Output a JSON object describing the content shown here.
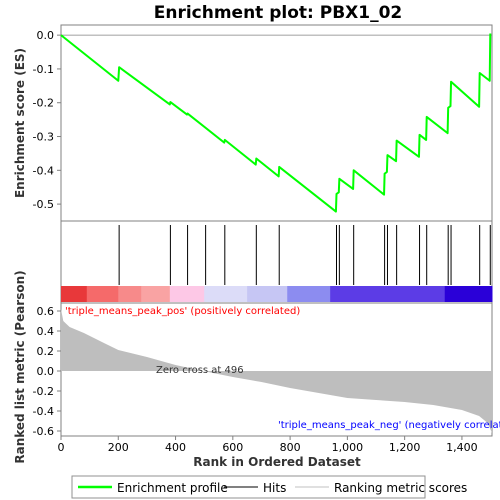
{
  "chart_data": {
    "type": "line",
    "title": "Enrichment plot: PBX1_02",
    "panels": [
      {
        "name": "enrichment-score",
        "ylabel": "Enrichment score (ES)",
        "ylim": [
          -0.55,
          0.03
        ],
        "yticks": [
          0.0,
          -0.1,
          -0.2,
          -0.3,
          -0.4,
          -0.5
        ],
        "ytick_labels": [
          "0.0",
          "-0.1",
          "-0.2",
          "-0.3",
          "-0.4",
          "-0.5"
        ],
        "series": [
          {
            "name": "Enrichment profile",
            "color": "#00ff00",
            "points": [
              [
                0,
                0.0
              ],
              [
                200,
                -0.135
              ],
              [
                203,
                -0.095
              ],
              [
                380,
                -0.205
              ],
              [
                382,
                -0.198
              ],
              [
                440,
                -0.235
              ],
              [
                442,
                -0.232
              ],
              [
                570,
                -0.318
              ],
              [
                572,
                -0.31
              ],
              [
                680,
                -0.383
              ],
              [
                682,
                -0.365
              ],
              [
                760,
                -0.418
              ],
              [
                762,
                -0.39
              ],
              [
                960,
                -0.522
              ],
              [
                962,
                -0.47
              ],
              [
                970,
                -0.465
              ],
              [
                972,
                -0.425
              ],
              [
                1020,
                -0.455
              ],
              [
                1022,
                -0.4
              ],
              [
                1128,
                -0.472
              ],
              [
                1130,
                -0.41
              ],
              [
                1138,
                -0.405
              ],
              [
                1140,
                -0.355
              ],
              [
                1170,
                -0.373
              ],
              [
                1172,
                -0.312
              ],
              [
                1250,
                -0.36
              ],
              [
                1252,
                -0.295
              ],
              [
                1275,
                -0.31
              ],
              [
                1277,
                -0.242
              ],
              [
                1350,
                -0.29
              ],
              [
                1352,
                -0.215
              ],
              [
                1360,
                -0.21
              ],
              [
                1362,
                -0.138
              ],
              [
                1460,
                -0.212
              ],
              [
                1462,
                -0.112
              ],
              [
                1497,
                -0.135
              ],
              [
                1499,
                0.005
              ]
            ]
          }
        ]
      },
      {
        "name": "hits",
        "hit_positions": [
          203,
          382,
          442,
          505,
          572,
          682,
          762,
          962,
          972,
          1022,
          1130,
          1140,
          1172,
          1252,
          1277,
          1352,
          1362,
          1462,
          1499
        ]
      },
      {
        "name": "ranked-metric",
        "ylabel": "Ranked list metric (Pearson)",
        "ylim": [
          -0.65,
          0.68
        ],
        "yticks": [
          0.6,
          0.4,
          0.2,
          0.0,
          -0.2,
          -0.4,
          -0.6
        ],
        "ytick_labels": [
          "0.6",
          "0.4",
          "0.2",
          "0.0",
          "-0.2",
          "-0.4",
          "-0.6"
        ],
        "series": [
          {
            "name": "Ranking metric scores",
            "color": "#bebebe",
            "points": [
              [
                0,
                0.62
              ],
              [
                8,
                0.5
              ],
              [
                30,
                0.44
              ],
              [
                80,
                0.38
              ],
              [
                150,
                0.28
              ],
              [
                200,
                0.21
              ],
              [
                300,
                0.14
              ],
              [
                400,
                0.06
              ],
              [
                496,
                0.0
              ],
              [
                600,
                -0.06
              ],
              [
                700,
                -0.11
              ],
              [
                800,
                -0.17
              ],
              [
                900,
                -0.22
              ],
              [
                1000,
                -0.27
              ],
              [
                1100,
                -0.29
              ],
              [
                1200,
                -0.31
              ],
              [
                1300,
                -0.34
              ],
              [
                1400,
                -0.39
              ],
              [
                1460,
                -0.45
              ],
              [
                1490,
                -0.52
              ],
              [
                1505,
                -0.62
              ]
            ]
          }
        ],
        "annotations": {
          "positive": "'triple_means_peak_pos' (positively correlated)",
          "zero_cross": "Zero cross at 496",
          "negative": "'triple_means_peak_neg' (negatively correlated)"
        }
      }
    ],
    "xlabel": "Rank in Ordered Dataset",
    "xlim": [
      0,
      1505
    ],
    "xticks": [
      0,
      200,
      400,
      600,
      800,
      1000,
      1200,
      1400
    ],
    "xtick_labels": [
      "0",
      "200",
      "400",
      "600",
      "800",
      "1,000",
      "1,200",
      "1,400"
    ],
    "color_bar": [
      {
        "end": 90,
        "color": "#e8383a"
      },
      {
        "end": 200,
        "color": "#f56a6a"
      },
      {
        "end": 280,
        "color": "#f78a8a"
      },
      {
        "end": 380,
        "color": "#f9a3a3"
      },
      {
        "end": 500,
        "color": "#fdc8e6"
      },
      {
        "end": 650,
        "color": "#dcdcf8"
      },
      {
        "end": 790,
        "color": "#c6c6f4"
      },
      {
        "end": 940,
        "color": "#8c8cf0"
      },
      {
        "end": 1340,
        "color": "#5c3ce6"
      },
      {
        "end": 1505,
        "color": "#2a00d8"
      }
    ],
    "legend": [
      {
        "label": "Enrichment profile",
        "color": "#00ff00",
        "style": "thick-line"
      },
      {
        "label": "Hits",
        "color": "#000000",
        "style": "line"
      },
      {
        "label": "Ranking metric scores",
        "color": "#c0c0c0",
        "style": "line"
      }
    ],
    "legend_position": "bottom"
  },
  "colors": {
    "profile": "#00ff00",
    "metric_fill": "#bebebe",
    "positive_text": "#ff0000",
    "negative_text": "#0000ff",
    "frame": "#808080"
  }
}
